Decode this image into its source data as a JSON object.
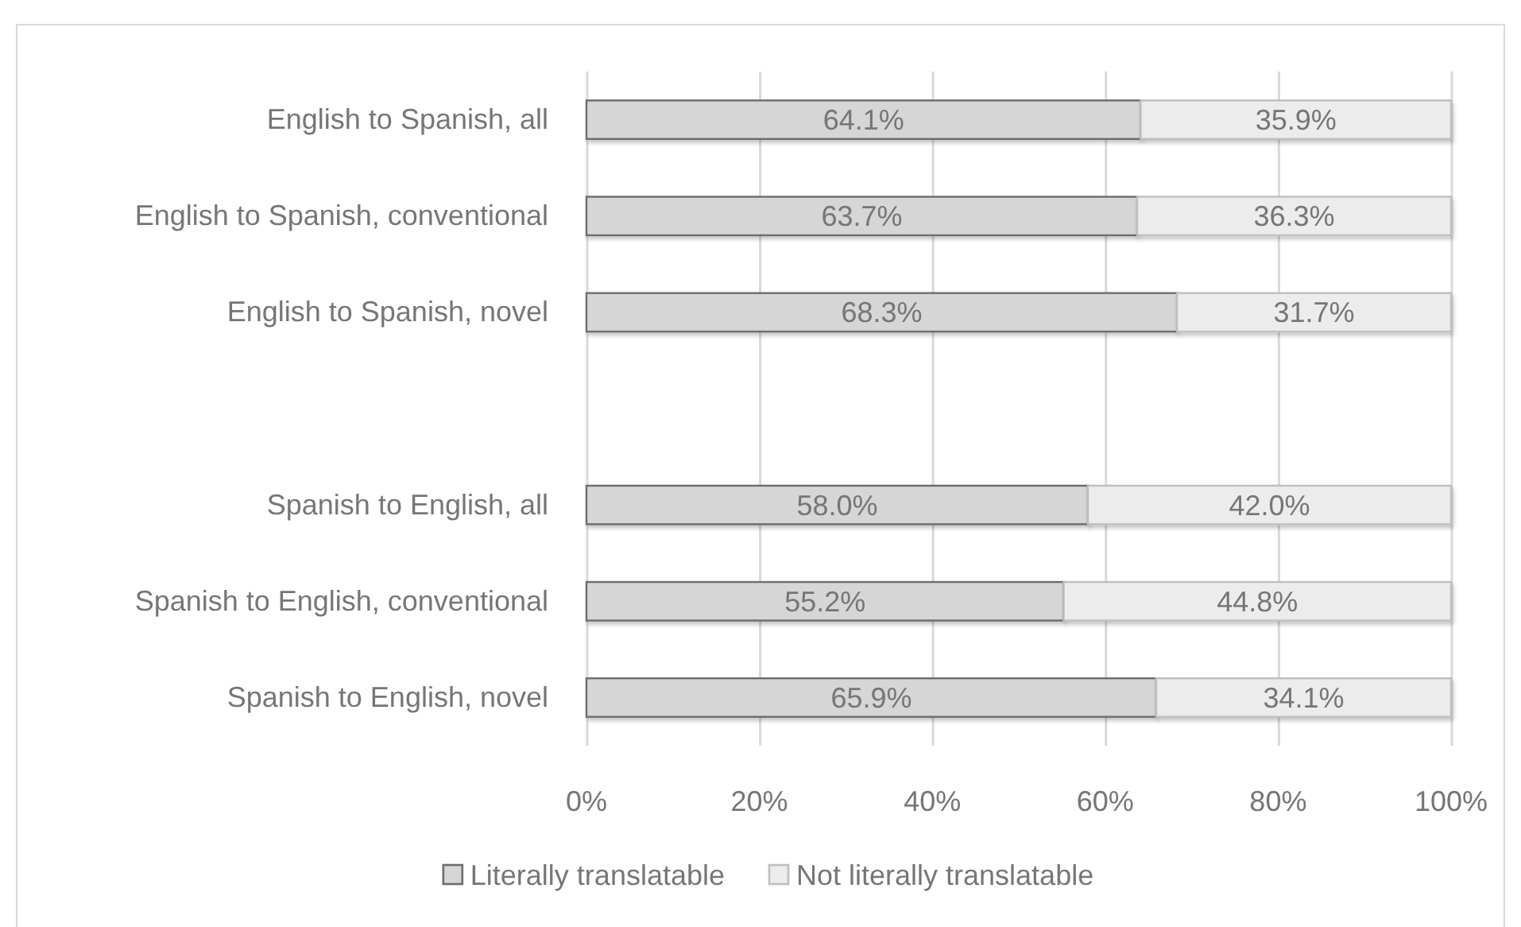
{
  "chart_data": {
    "type": "bar",
    "orientation": "horizontal",
    "stacked": true,
    "categories": [
      "English to Spanish, all",
      "English to Spanish, conventional",
      "English to Spanish, novel",
      null,
      "Spanish to English, all",
      "Spanish to English, conventional",
      "Spanish to English, novel"
    ],
    "series": [
      {
        "name": "Literally translatable",
        "color": "#d6d6d6",
        "values": [
          64.1,
          63.7,
          68.3,
          null,
          58.0,
          55.2,
          65.9
        ],
        "value_labels": [
          "64.1%",
          "63.7%",
          "68.3%",
          null,
          "58.0%",
          "55.2%",
          "65.9%"
        ]
      },
      {
        "name": "Not literally translatable",
        "color": "#ececec",
        "values": [
          35.9,
          36.3,
          31.7,
          null,
          42.0,
          44.8,
          34.1
        ],
        "value_labels": [
          "35.9%",
          "36.3%",
          "31.7%",
          null,
          "42.0%",
          "44.8%",
          "34.1%"
        ]
      }
    ],
    "xlim": [
      0,
      100
    ],
    "xticks": [
      {
        "value": 0,
        "label": "0%"
      },
      {
        "value": 20,
        "label": "20%"
      },
      {
        "value": 40,
        "label": "40%"
      },
      {
        "value": 60,
        "label": "60%"
      },
      {
        "value": 80,
        "label": "80%"
      },
      {
        "value": 100,
        "label": "100%"
      }
    ],
    "grid": "x",
    "legend": "bottom"
  }
}
